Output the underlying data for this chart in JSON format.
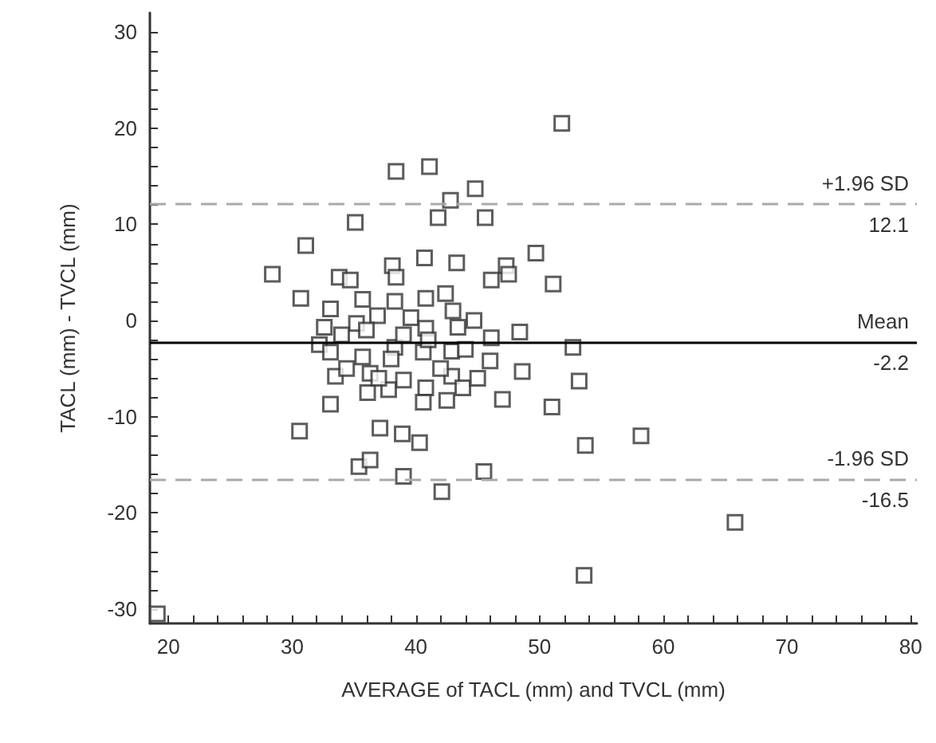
{
  "chart_data": {
    "type": "scatter",
    "xlabel": "AVERAGE of TACL (mm) and TVCL (mm)",
    "ylabel": "TACL (mm) - TVCL (mm)",
    "marker": "square",
    "grid": false,
    "xlim": [
      18.5,
      80.5
    ],
    "xticks": [
      20,
      {
        "value": 22,
        "label": null
      },
      {
        "value": 24,
        "label": null
      },
      {
        "value": 26,
        "label": null
      },
      {
        "value": 28,
        "label": null
      },
      30,
      {
        "value": 32,
        "label": null
      },
      {
        "value": 34,
        "label": null
      },
      {
        "value": 36,
        "label": null
      },
      {
        "value": 38,
        "label": null
      },
      40,
      {
        "value": 42,
        "label": null
      },
      {
        "value": 44,
        "label": null
      },
      {
        "value": 46,
        "label": null
      },
      {
        "value": 48,
        "label": null
      },
      50,
      {
        "value": 52,
        "label": null
      },
      {
        "value": 54,
        "label": null
      },
      {
        "value": 56,
        "label": null
      },
      {
        "value": 58,
        "label": null
      },
      60,
      {
        "value": 62,
        "label": null
      },
      {
        "value": 64,
        "label": null
      },
      {
        "value": 66,
        "label": null
      },
      {
        "value": 68,
        "label": null
      },
      70,
      {
        "value": 72,
        "label": null
      },
      {
        "value": 74,
        "label": null
      },
      {
        "value": 76,
        "label": null
      },
      {
        "value": 78,
        "label": null
      },
      80
    ],
    "ylim": [
      -31.5,
      32
    ],
    "yticks": [
      -30,
      {
        "value": -28,
        "label": null
      },
      {
        "value": -26,
        "label": null
      },
      {
        "value": -24,
        "label": null
      },
      {
        "value": -22,
        "label": null
      },
      -20,
      {
        "value": -18,
        "label": null
      },
      {
        "value": -16,
        "label": null
      },
      {
        "value": -14,
        "label": null
      },
      {
        "value": -12,
        "label": null
      },
      -10,
      {
        "value": -8,
        "label": null
      },
      {
        "value": -6,
        "label": null
      },
      {
        "value": -4,
        "label": null
      },
      {
        "value": -2,
        "label": null
      },
      0,
      {
        "value": 2,
        "label": null
      },
      {
        "value": 4,
        "label": null
      },
      {
        "value": 6,
        "label": null
      },
      {
        "value": 8,
        "label": null
      },
      10,
      {
        "value": 12,
        "label": null
      },
      {
        "value": 14,
        "label": null
      },
      {
        "value": 16,
        "label": null
      },
      {
        "value": 18,
        "label": null
      },
      20,
      {
        "value": 22,
        "label": null
      },
      {
        "value": 24,
        "label": null
      },
      {
        "value": 26,
        "label": null
      },
      {
        "value": 28,
        "label": null
      },
      30
    ],
    "ref_lines": [
      {
        "axis": "y",
        "value": 12.1,
        "label": "+1.96 SD\n12.1",
        "color": "#aaaaaa",
        "line_style": "dashed"
      },
      {
        "axis": "y",
        "value": -2.2,
        "label": "Mean\n-2.2",
        "color": "#000000",
        "line_style": "solid"
      },
      {
        "axis": "y",
        "value": -16.5,
        "label": "-1.96 SD\n-16.5",
        "color": "#aaaaaa",
        "line_style": "dashed"
      }
    ],
    "series": [
      {
        "color": "#333333",
        "x": [
          38.4,
          41.1,
          44.8,
          42.8,
          41.8,
          45.6,
          35.1,
          31.1,
          28.4,
          40.7,
          43.3,
          47.3,
          47.5,
          46.1,
          33.8,
          34.7,
          38.1,
          38.4,
          30.7,
          42.4,
          35.7,
          33.1,
          38.3,
          40.8,
          32.6,
          35.2,
          36.9,
          39.6,
          40.8,
          43.4,
          44.7,
          46.1,
          48.4,
          32.2,
          33.1,
          35.7,
          38.3,
          40.6,
          42.9,
          46.0,
          48.6,
          33.5,
          34.4,
          36.3,
          39.0,
          40.8,
          42.9,
          43.8,
          36.1,
          37.8,
          40.6,
          42.5,
          47.0,
          33.1,
          30.6,
          37.1,
          38.9,
          40.3,
          35.4,
          36.3,
          39.0,
          42.1,
          45.5,
          19.1,
          51.8,
          49.7,
          51.1,
          52.7,
          53.2,
          51.0,
          53.7,
          58.2,
          65.8,
          53.6,
          36.0,
          38.0,
          41.0,
          44.0,
          39.0,
          34.0,
          43.0,
          37.0,
          42.0,
          45.0
        ],
        "values": [
          15.5,
          16.0,
          13.7,
          12.5,
          10.7,
          10.7,
          10.2,
          7.8,
          4.8,
          6.5,
          6.0,
          5.7,
          4.8,
          4.2,
          4.5,
          4.2,
          5.7,
          4.5,
          2.3,
          2.8,
          2.2,
          1.2,
          2.0,
          2.3,
          -0.7,
          -0.3,
          0.5,
          0.3,
          -0.8,
          -0.7,
          0.0,
          -1.8,
          -1.2,
          -2.5,
          -3.3,
          -3.8,
          -2.8,
          -3.3,
          -3.2,
          -4.2,
          -5.3,
          -5.8,
          -5.0,
          -5.5,
          -6.2,
          -7.0,
          -5.8,
          -7.0,
          -7.5,
          -7.2,
          -8.5,
          -8.3,
          -8.2,
          -8.7,
          -11.5,
          -11.2,
          -11.8,
          -12.7,
          -15.2,
          -14.5,
          -16.2,
          -17.8,
          -15.7,
          -30.5,
          20.5,
          7.0,
          3.8,
          -2.8,
          -6.3,
          -9.0,
          -13.0,
          -12.0,
          -21.0,
          -26.5,
          -1.0,
          -4.0,
          -2.0,
          -3.0,
          -1.5,
          -1.5,
          1.0,
          -6.0,
          -5.0,
          -6.0
        ]
      }
    ]
  }
}
